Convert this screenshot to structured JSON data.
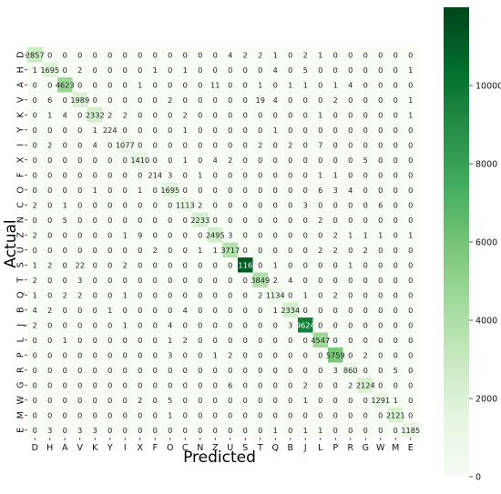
{
  "chart_data": {
    "type": "heatmap",
    "title": "",
    "xlabel": "Predicted",
    "ylabel": "Actual",
    "x_categories": [
      "D",
      "H",
      "A",
      "V",
      "K",
      "Y",
      "I",
      "X",
      "F",
      "O",
      "C",
      "N",
      "Z",
      "U",
      "S",
      "T",
      "Q",
      "B",
      "J",
      "L",
      "P",
      "R",
      "G",
      "W",
      "M",
      "E"
    ],
    "y_categories": [
      "D",
      "H",
      "A",
      "V",
      "K",
      "Y",
      "I",
      "X",
      "F",
      "O",
      "C",
      "N",
      "Z",
      "U",
      "S",
      "T",
      "Q",
      "B",
      "J",
      "L",
      "P",
      "R",
      "G",
      "W",
      "M",
      "E"
    ],
    "colormap": "Greens",
    "vmin": 0,
    "vmax": 12000,
    "colorbar_ticks": [
      0,
      2000,
      4000,
      6000,
      8000,
      10000
    ],
    "colorbar_tick_labels": [
      "0",
      "2000",
      "4000",
      "6000",
      "8000",
      "10000"
    ],
    "matrix": [
      [
        2857,
        0,
        0,
        0,
        0,
        0,
        0,
        0,
        0,
        0,
        0,
        0,
        0,
        4,
        2,
        2,
        1,
        0,
        2,
        1,
        0,
        0,
        0,
        0,
        0,
        0
      ],
      [
        1,
        1695,
        0,
        2,
        0,
        0,
        0,
        0,
        1,
        0,
        1,
        0,
        0,
        0,
        0,
        0,
        4,
        0,
        5,
        0,
        0,
        0,
        0,
        0,
        0,
        1
      ],
      [
        0,
        0,
        4623,
        0,
        0,
        0,
        0,
        1,
        0,
        0,
        0,
        0,
        11,
        0,
        0,
        1,
        0,
        1,
        1,
        0,
        1,
        4,
        0,
        0,
        0,
        0
      ],
      [
        0,
        6,
        0,
        1989,
        0,
        0,
        0,
        0,
        0,
        2,
        0,
        0,
        0,
        0,
        0,
        19,
        4,
        0,
        0,
        0,
        2,
        0,
        0,
        0,
        0,
        1
      ],
      [
        0,
        1,
        4,
        0,
        2332,
        2,
        2,
        0,
        0,
        0,
        2,
        0,
        0,
        0,
        0,
        0,
        0,
        0,
        0,
        1,
        0,
        0,
        0,
        0,
        0,
        1
      ],
      [
        0,
        0,
        0,
        0,
        1,
        224,
        0,
        0,
        0,
        0,
        1,
        0,
        0,
        0,
        0,
        0,
        1,
        0,
        0,
        0,
        0,
        0,
        0,
        0,
        0,
        0
      ],
      [
        0,
        2,
        0,
        0,
        4,
        0,
        1077,
        0,
        0,
        0,
        0,
        0,
        0,
        0,
        0,
        2,
        0,
        2,
        0,
        7,
        0,
        0,
        0,
        0,
        0,
        0
      ],
      [
        0,
        0,
        0,
        0,
        0,
        0,
        0,
        1410,
        0,
        0,
        1,
        0,
        4,
        2,
        0,
        0,
        0,
        0,
        0,
        0,
        0,
        0,
        5,
        0,
        0,
        0
      ],
      [
        0,
        0,
        0,
        0,
        0,
        0,
        0,
        0,
        214,
        3,
        0,
        1,
        0,
        0,
        0,
        0,
        0,
        0,
        0,
        1,
        1,
        0,
        0,
        0,
        0,
        0
      ],
      [
        0,
        0,
        0,
        0,
        1,
        0,
        0,
        1,
        0,
        1695,
        0,
        0,
        0,
        0,
        0,
        0,
        0,
        0,
        0,
        6,
        3,
        4,
        0,
        0,
        0,
        0
      ],
      [
        2,
        0,
        1,
        0,
        0,
        0,
        0,
        0,
        0,
        0,
        1113,
        2,
        0,
        0,
        0,
        0,
        0,
        0,
        3,
        0,
        0,
        0,
        0,
        6,
        0,
        0
      ],
      [
        0,
        0,
        5,
        0,
        0,
        0,
        0,
        0,
        0,
        0,
        0,
        2233,
        0,
        0,
        0,
        0,
        0,
        0,
        0,
        2,
        0,
        0,
        0,
        0,
        0,
        0
      ],
      [
        2,
        0,
        0,
        0,
        0,
        0,
        1,
        9,
        0,
        0,
        0,
        0,
        2495,
        3,
        0,
        0,
        0,
        0,
        0,
        0,
        2,
        1,
        1,
        1,
        0,
        1
      ],
      [
        0,
        0,
        0,
        0,
        0,
        0,
        0,
        0,
        2,
        0,
        0,
        1,
        1,
        3717,
        0,
        0,
        0,
        0,
        0,
        2,
        2,
        0,
        2,
        0,
        0,
        0
      ],
      [
        1,
        2,
        0,
        22,
        0,
        0,
        2,
        0,
        0,
        0,
        0,
        0,
        0,
        0,
        11166,
        0,
        1,
        0,
        0,
        0,
        0,
        1,
        0,
        0,
        0,
        0
      ],
      [
        2,
        0,
        0,
        3,
        0,
        0,
        0,
        0,
        0,
        0,
        0,
        0,
        0,
        0,
        0,
        3849,
        2,
        4,
        0,
        0,
        0,
        0,
        0,
        0,
        0,
        0
      ],
      [
        1,
        0,
        2,
        2,
        0,
        0,
        1,
        0,
        0,
        0,
        0,
        0,
        0,
        0,
        0,
        2,
        1134,
        0,
        1,
        0,
        2,
        0,
        0,
        0,
        0,
        0
      ],
      [
        4,
        2,
        0,
        0,
        0,
        1,
        0,
        0,
        0,
        0,
        4,
        0,
        0,
        0,
        0,
        0,
        1,
        2334,
        0,
        0,
        0,
        0,
        0,
        0,
        0,
        0
      ],
      [
        2,
        0,
        0,
        0,
        0,
        0,
        1,
        0,
        0,
        4,
        0,
        0,
        0,
        0,
        0,
        0,
        0,
        3,
        9624,
        0,
        0,
        0,
        0,
        0,
        0,
        0
      ],
      [
        0,
        0,
        1,
        0,
        0,
        0,
        0,
        0,
        0,
        1,
        2,
        0,
        0,
        0,
        0,
        0,
        0,
        0,
        0,
        4547,
        0,
        0,
        0,
        0,
        0,
        0
      ],
      [
        0,
        0,
        0,
        0,
        0,
        0,
        0,
        0,
        0,
        3,
        0,
        0,
        1,
        2,
        0,
        0,
        0,
        0,
        0,
        0,
        5759,
        0,
        2,
        0,
        0,
        0
      ],
      [
        0,
        0,
        0,
        0,
        0,
        0,
        0,
        0,
        0,
        0,
        0,
        0,
        0,
        0,
        0,
        0,
        0,
        0,
        0,
        0,
        3,
        860,
        0,
        0,
        5,
        0
      ],
      [
        0,
        0,
        0,
        0,
        0,
        0,
        0,
        0,
        0,
        0,
        0,
        0,
        0,
        6,
        0,
        0,
        0,
        0,
        2,
        0,
        0,
        2,
        2124,
        0,
        0,
        0
      ],
      [
        0,
        0,
        0,
        0,
        0,
        0,
        0,
        2,
        0,
        5,
        0,
        0,
        0,
        0,
        0,
        0,
        0,
        0,
        1,
        0,
        0,
        0,
        0,
        1291,
        1,
        0
      ],
      [
        0,
        0,
        0,
        0,
        0,
        0,
        0,
        0,
        0,
        1,
        0,
        0,
        0,
        0,
        0,
        0,
        0,
        0,
        0,
        0,
        0,
        0,
        0,
        0,
        2121,
        0
      ],
      [
        0,
        3,
        0,
        3,
        3,
        0,
        0,
        0,
        0,
        0,
        0,
        0,
        0,
        0,
        0,
        0,
        1,
        0,
        1,
        1,
        0,
        0,
        0,
        0,
        0,
        1185
      ]
    ]
  }
}
